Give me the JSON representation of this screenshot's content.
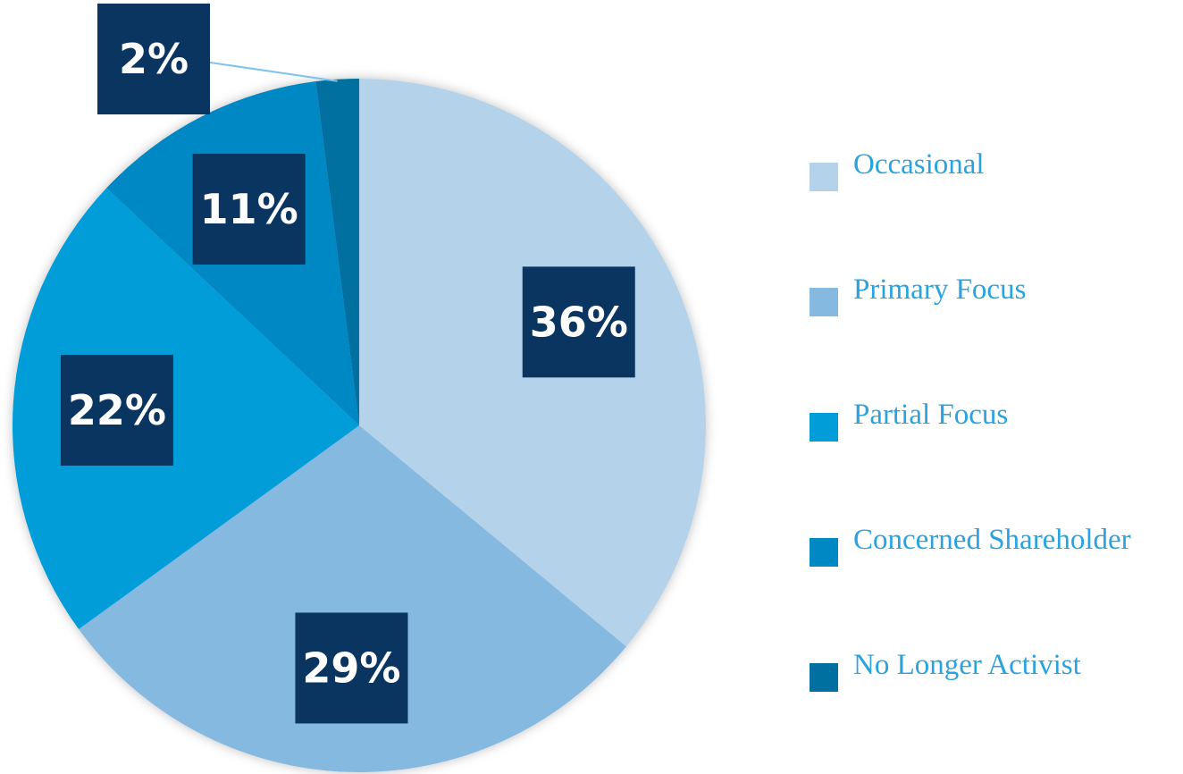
{
  "chart_data": {
    "type": "pie",
    "categories": [
      "Occasional",
      "Primary Focus",
      "Partial Focus",
      "Concerned Shareholder",
      "No Longer Activist"
    ],
    "values": [
      36,
      29,
      22,
      11,
      2
    ],
    "value_labels": [
      "36%",
      "29%",
      "22%",
      "11%",
      "2%"
    ],
    "colors": [
      "#b4d2ea",
      "#86b9e0",
      "#009dd9",
      "#0088c4",
      "#0070a0"
    ],
    "legend": "right"
  }
}
